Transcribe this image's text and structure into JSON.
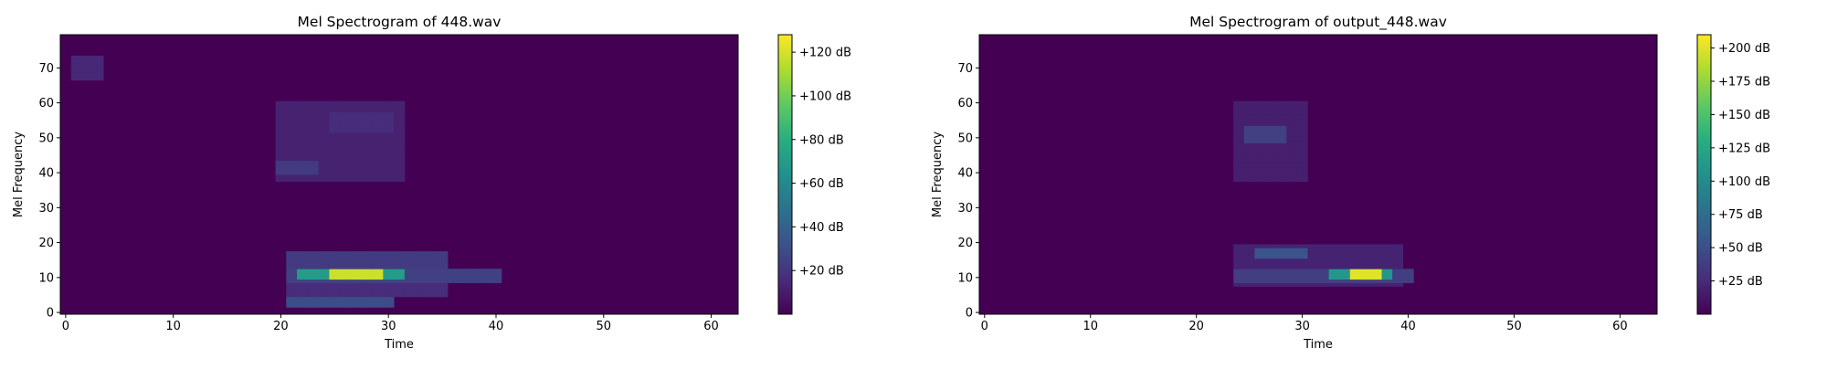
{
  "chart_data": [
    {
      "type": "heatmap",
      "title": "Mel Spectrogram of 448.wav",
      "xlabel": "Time",
      "ylabel": "Mel Frequency",
      "xlim": [
        -0.5,
        62.5
      ],
      "ylim": [
        -0.5,
        79.5
      ],
      "x_ticks": [
        0,
        10,
        20,
        30,
        40,
        50,
        60
      ],
      "y_ticks": [
        0,
        10,
        20,
        30,
        40,
        50,
        60,
        70
      ],
      "colormap": "viridis",
      "color_range": [
        0,
        128
      ],
      "colorbar_ticks": [
        {
          "value": 20,
          "label": "+20 dB"
        },
        {
          "value": 40,
          "label": "+40 dB"
        },
        {
          "value": 60,
          "label": "+60 dB"
        },
        {
          "value": 80,
          "label": "+80 dB"
        },
        {
          "value": 100,
          "label": "+100 dB"
        },
        {
          "value": 120,
          "label": "+120 dB"
        }
      ],
      "energy_regions": [
        {
          "t": [
            1,
            3
          ],
          "f": [
            67,
            73
          ],
          "db": 14
        },
        {
          "t": [
            20,
            31
          ],
          "f": [
            38,
            60
          ],
          "db": 12
        },
        {
          "t": [
            20,
            23
          ],
          "f": [
            40,
            43
          ],
          "db": 22
        },
        {
          "t": [
            25,
            30
          ],
          "f": [
            52,
            57
          ],
          "db": 16
        },
        {
          "t": [
            21,
            40
          ],
          "f": [
            9,
            12
          ],
          "db": 24
        },
        {
          "t": [
            22,
            31
          ],
          "f": [
            10,
            12
          ],
          "db": 70
        },
        {
          "t": [
            25,
            29
          ],
          "f": [
            10,
            12
          ],
          "db": 118
        },
        {
          "t": [
            21,
            35
          ],
          "f": [
            12,
            17
          ],
          "db": 22
        },
        {
          "t": [
            21,
            35
          ],
          "f": [
            5,
            8
          ],
          "db": 16
        },
        {
          "t": [
            21,
            30
          ],
          "f": [
            2,
            4
          ],
          "db": 30
        }
      ]
    },
    {
      "type": "heatmap",
      "title": "Mel Spectrogram of output_448.wav",
      "xlabel": "Time",
      "ylabel": "Mel Frequency",
      "xlim": [
        -0.5,
        63.5
      ],
      "ylim": [
        -0.5,
        79.5
      ],
      "x_ticks": [
        0,
        10,
        20,
        30,
        40,
        50,
        60
      ],
      "y_ticks": [
        0,
        10,
        20,
        30,
        40,
        50,
        60,
        70
      ],
      "colormap": "viridis",
      "color_range": [
        0,
        210
      ],
      "colorbar_ticks": [
        {
          "value": 25,
          "label": "+25 dB"
        },
        {
          "value": 50,
          "label": "+50 dB"
        },
        {
          "value": 75,
          "label": "+75 dB"
        },
        {
          "value": 100,
          "label": "+100 dB"
        },
        {
          "value": 125,
          "label": "+125 dB"
        },
        {
          "value": 150,
          "label": "+150 dB"
        },
        {
          "value": 175,
          "label": "+175 dB"
        },
        {
          "value": 200,
          "label": "+200 dB"
        }
      ],
      "energy_regions": [
        {
          "t": [
            24,
            30
          ],
          "f": [
            38,
            60
          ],
          "db": 18
        },
        {
          "t": [
            25,
            28
          ],
          "f": [
            49,
            53
          ],
          "db": 40
        },
        {
          "t": [
            24,
            39
          ],
          "f": [
            8,
            19
          ],
          "db": 20
        },
        {
          "t": [
            26,
            30
          ],
          "f": [
            16,
            18
          ],
          "db": 55
        },
        {
          "t": [
            24,
            40
          ],
          "f": [
            9,
            12
          ],
          "db": 38
        },
        {
          "t": [
            33,
            38
          ],
          "f": [
            10,
            12
          ],
          "db": 110
        },
        {
          "t": [
            35,
            37
          ],
          "f": [
            10,
            12
          ],
          "db": 200
        }
      ]
    }
  ]
}
